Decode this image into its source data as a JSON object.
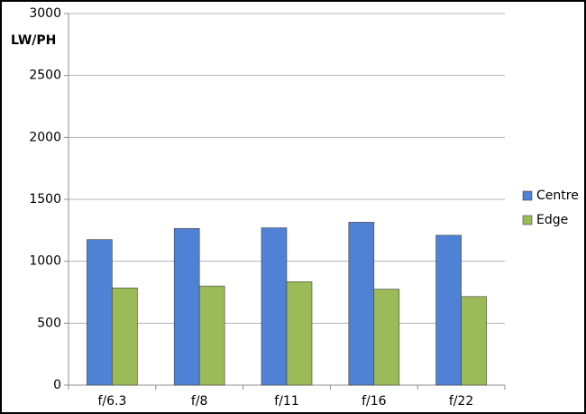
{
  "chart_data": {
    "type": "bar",
    "y_label": "LW/PH",
    "categories": [
      "f/6.3",
      "f/8",
      "f/11",
      "f/16",
      "f/22"
    ],
    "series": [
      {
        "name": "Centre",
        "color": "#4f81d4",
        "values": [
          1175,
          1265,
          1270,
          1315,
          1210
        ]
      },
      {
        "name": "Edge",
        "color": "#9bbb59",
        "values": [
          785,
          800,
          835,
          775,
          715
        ]
      }
    ],
    "ylim": [
      0,
      3000
    ],
    "yticks": [
      0,
      500,
      1000,
      1500,
      2000,
      2500,
      3000
    ],
    "grid": true,
    "legend": "right"
  }
}
